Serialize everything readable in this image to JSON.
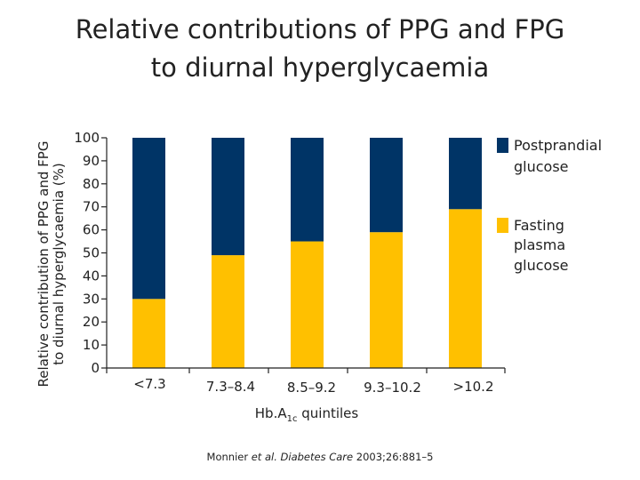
{
  "title": {
    "line1": "Relative contributions of PPG and FPG",
    "line2": "to diurnal hyperglycaemia"
  },
  "y_axis": {
    "line1": "Relative contribution of PPG and FPG",
    "line2": "to diurnal hyperglycaemia (%)"
  },
  "x_axis": {
    "prefix": "Hb.A",
    "subscript": "1c",
    "suffix": " quintiles"
  },
  "citation": {
    "author": "Monnier ",
    "etal": "et al. Diabetes Care",
    "ref": " 2003;26:881–5"
  },
  "legend": {
    "ppg_line1": "Postprandial",
    "ppg_line2": "glucose",
    "fpg_line1": "Fasting",
    "fpg_line2": "plasma",
    "fpg_line3": "glucose"
  },
  "colors": {
    "ppg": "#003466",
    "fpg": "#FFC000",
    "axis": "#222222"
  },
  "chart_data": {
    "type": "bar",
    "stacked": true,
    "title": "Relative contributions of PPG and FPG to diurnal hyperglycaemia",
    "xlabel": "Hb.A1c quintiles",
    "ylabel": "Relative contribution of PPG and FPG to diurnal hyperglycaemia (%)",
    "categories": [
      "<7.3",
      "7.3–8.4",
      "8.5–9.2",
      "9.3–10.2",
      ">10.2"
    ],
    "series": [
      {
        "name": "Fasting plasma glucose",
        "values": [
          30,
          49,
          55,
          59,
          69
        ]
      },
      {
        "name": "Postprandial glucose",
        "values": [
          70,
          51,
          45,
          41,
          31
        ]
      }
    ],
    "ylim": [
      0,
      100
    ],
    "yticks": [
      0,
      10,
      20,
      30,
      40,
      50,
      60,
      70,
      80,
      90,
      100
    ],
    "grid": false,
    "legend_position": "right"
  }
}
